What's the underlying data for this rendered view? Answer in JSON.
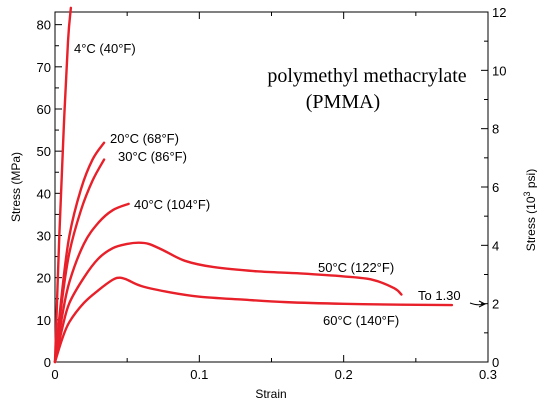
{
  "chart_data": {
    "type": "line",
    "title": "polymethyl methacrylate",
    "subtitle": "(PMMA)",
    "xlabel": "Strain",
    "ylabel": "Stress (MPa)",
    "ylabel_right": {
      "base": "Stress (10",
      "exp": "3",
      "tail": " psi)"
    },
    "xlim": [
      0,
      0.3
    ],
    "ylim": [
      0,
      83
    ],
    "ylim_right": [
      0,
      12
    ],
    "x_ticks": [
      "0",
      "0.1",
      "0.2",
      "0.3"
    ],
    "x_tick_values": [
      0,
      0.1,
      0.2,
      0.3
    ],
    "y_ticks": [
      "0",
      "10",
      "20",
      "30",
      "40",
      "50",
      "60",
      "70",
      "80"
    ],
    "y_tick_values": [
      0,
      10,
      20,
      30,
      40,
      50,
      60,
      70,
      80
    ],
    "y_ticks_right": [
      "0",
      "2",
      "4",
      "6",
      "8",
      "10",
      "12"
    ],
    "y_tick_values_right": [
      0,
      2,
      4,
      6,
      8,
      10,
      12
    ],
    "line_color": "#e8202a",
    "series": [
      {
        "label": "4°C (40°F)",
        "x": [
          0,
          0.003,
          0.006,
          0.009,
          0.011
        ],
        "y": [
          0,
          30,
          55,
          76,
          84
        ]
      },
      {
        "label": "20°C (68°F)",
        "x": [
          0,
          0.005,
          0.01,
          0.018,
          0.026,
          0.034
        ],
        "y": [
          0,
          17,
          30,
          41,
          48,
          52
        ]
      },
      {
        "label": "30°C (86°F)",
        "x": [
          0,
          0.005,
          0.01,
          0.018,
          0.026,
          0.034
        ],
        "y": [
          0,
          15,
          26,
          36,
          43,
          48
        ]
      },
      {
        "label": "40°C (104°F)",
        "x": [
          0,
          0.005,
          0.01,
          0.02,
          0.03,
          0.04,
          0.051
        ],
        "y": [
          0,
          11,
          19,
          28,
          33,
          36,
          37.5
        ]
      },
      {
        "label": "50°C (122°F)",
        "x": [
          0,
          0.005,
          0.01,
          0.02,
          0.03,
          0.04,
          0.05,
          0.058,
          0.065,
          0.075,
          0.09,
          0.11,
          0.14,
          0.17,
          0.2,
          0.22,
          0.235,
          0.24
        ],
        "y": [
          0,
          8,
          14,
          20,
          24.5,
          27,
          28,
          28.3,
          28,
          26.5,
          24,
          22.5,
          21.5,
          21,
          20.3,
          19.5,
          17.5,
          16
        ]
      },
      {
        "label": "60°C (140°F)",
        "x": [
          0,
          0.005,
          0.01,
          0.02,
          0.03,
          0.04,
          0.045,
          0.05,
          0.06,
          0.08,
          0.1,
          0.13,
          0.16,
          0.2,
          0.24,
          0.275
        ],
        "y": [
          0,
          5.5,
          9.5,
          14,
          17,
          19.5,
          20,
          19.5,
          18,
          16.5,
          15.5,
          14.8,
          14.2,
          13.8,
          13.6,
          13.5
        ]
      }
    ],
    "annotation": "To 1.30"
  }
}
